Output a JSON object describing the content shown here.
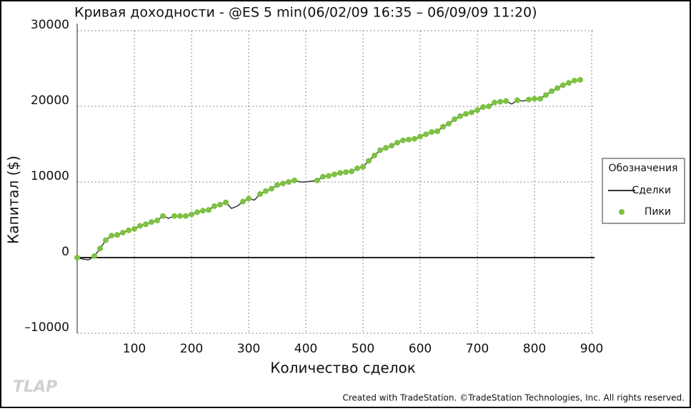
{
  "chart_data": {
    "type": "line",
    "title": "Кривая доходности - @ES 5 min(06/02/09 16:35 – 06/09/09 11:20)",
    "xlabel": "Количество сделок",
    "ylabel": "Капитал ($)",
    "legend_title": "Обозначения",
    "legend": "right",
    "grid": true,
    "watermark": "TLAP",
    "credit": "Created with TradeStation. ©TradeStation Technologies, Inc. All rights reserved.",
    "xlim": [
      0,
      905
    ],
    "xticks": [
      100,
      200,
      300,
      400,
      500,
      600,
      700,
      800,
      900
    ],
    "ylim": [
      -10000,
      30000
    ],
    "yticks": [
      {
        "value": -10000,
        "label": "–10000"
      },
      0,
      10000,
      20000,
      30000
    ],
    "x": [
      0,
      10,
      20,
      30,
      40,
      50,
      60,
      70,
      80,
      90,
      100,
      110,
      120,
      130,
      140,
      150,
      160,
      170,
      180,
      190,
      200,
      210,
      220,
      230,
      240,
      250,
      260,
      270,
      280,
      290,
      300,
      310,
      320,
      330,
      340,
      350,
      360,
      370,
      380,
      390,
      400,
      410,
      420,
      430,
      440,
      450,
      460,
      470,
      480,
      490,
      500,
      510,
      520,
      530,
      540,
      550,
      560,
      570,
      580,
      590,
      600,
      610,
      620,
      630,
      640,
      650,
      660,
      670,
      680,
      690,
      700,
      710,
      720,
      730,
      740,
      750,
      760,
      770,
      780,
      790,
      800,
      810,
      820,
      830,
      840,
      850,
      860,
      870,
      880
    ],
    "series": [
      {
        "name": "Сделки",
        "color": "#333333",
        "style": "line",
        "values": [
          0,
          -200,
          -300,
          200,
          1200,
          2300,
          2900,
          3000,
          3300,
          3600,
          3800,
          4200,
          4400,
          4700,
          4900,
          5500,
          5200,
          5500,
          5500,
          5500,
          5700,
          6000,
          6200,
          6300,
          6800,
          7000,
          7300,
          6500,
          6800,
          7400,
          7800,
          7600,
          8400,
          8800,
          9100,
          9600,
          9800,
          10000,
          10200,
          10000,
          10000,
          10100,
          10200,
          10700,
          10800,
          11000,
          11200,
          11300,
          11400,
          11800,
          12000,
          12800,
          13500,
          14200,
          14500,
          14800,
          15200,
          15500,
          15600,
          15700,
          16000,
          16300,
          16600,
          16700,
          17300,
          17700,
          18300,
          18700,
          19000,
          19200,
          19500,
          19900,
          20000,
          20500,
          20600,
          20700,
          20300,
          20800,
          20700,
          20900,
          21000,
          21000,
          21500,
          22000,
          22400,
          22800,
          23100,
          23400,
          23500
        ]
      },
      {
        "name": "Пики",
        "color": "#7dc242",
        "style": "dots",
        "values": [
          0,
          null,
          null,
          200,
          1200,
          2300,
          2900,
          3000,
          3300,
          3600,
          3800,
          4200,
          4400,
          4700,
          4900,
          5500,
          null,
          5500,
          5500,
          5500,
          5700,
          6000,
          6200,
          6300,
          6800,
          7000,
          7300,
          null,
          null,
          7400,
          7800,
          null,
          8400,
          8800,
          9100,
          9600,
          9800,
          10000,
          10200,
          null,
          null,
          null,
          10200,
          10700,
          10800,
          11000,
          11200,
          11300,
          11400,
          11800,
          12000,
          12800,
          13500,
          14200,
          14500,
          14800,
          15200,
          15500,
          15600,
          15700,
          16000,
          16300,
          16600,
          16700,
          17300,
          17700,
          18300,
          18700,
          19000,
          19200,
          19500,
          19900,
          20000,
          20500,
          20600,
          20700,
          null,
          20800,
          null,
          20900,
          21000,
          21000,
          21500,
          22000,
          22400,
          22800,
          23100,
          23400,
          23500
        ]
      }
    ]
  }
}
